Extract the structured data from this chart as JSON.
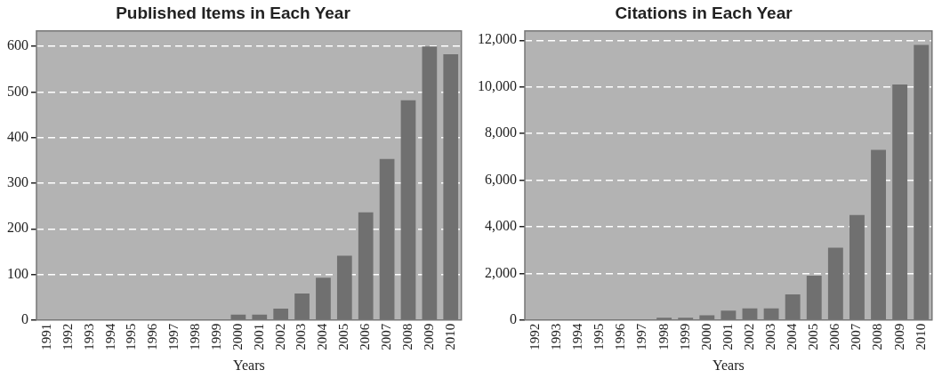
{
  "chart_data": [
    {
      "type": "bar",
      "title": "Published Items in Each Year",
      "xlabel": "Years",
      "categories": [
        "1991",
        "1992",
        "1993",
        "1994",
        "1995",
        "1996",
        "1997",
        "1998",
        "1999",
        "2000",
        "2001",
        "2002",
        "2003",
        "2004",
        "2005",
        "2006",
        "2007",
        "2008",
        "2009",
        "2010"
      ],
      "values": [
        0,
        0,
        0,
        0,
        0,
        0,
        0,
        0,
        0,
        12,
        12,
        25,
        58,
        93,
        141,
        236,
        353,
        482,
        600,
        583
      ],
      "color": "#707070",
      "ylim": [
        0,
        634
      ],
      "yticks": [
        0,
        100,
        200,
        300,
        400,
        500,
        600
      ],
      "grid": "y",
      "legend": false
    },
    {
      "type": "bar",
      "title": "Citations in Each Year",
      "xlabel": "Years",
      "categories": [
        "1992",
        "1993",
        "1994",
        "1995",
        "1996",
        "1997",
        "1998",
        "1999",
        "2000",
        "2001",
        "2002",
        "2003",
        "2004",
        "2005",
        "2006",
        "2007",
        "2008",
        "2009",
        "2010"
      ],
      "values": [
        0,
        0,
        0,
        0,
        0,
        0,
        100,
        100,
        200,
        400,
        500,
        500,
        1100,
        1900,
        3100,
        4500,
        7300,
        10100,
        11800
      ],
      "color": "#707070",
      "ylim": [
        0,
        12400
      ],
      "yticks": [
        0,
        {
          "value": 2000,
          "label": "2,000"
        },
        {
          "value": 4000,
          "label": "4,000"
        },
        {
          "value": 6000,
          "label": "6,000"
        },
        {
          "value": 8000,
          "label": "8,000"
        },
        {
          "value": 10000,
          "label": "10,000"
        },
        {
          "value": 12000,
          "label": "12,000"
        }
      ],
      "grid": "y",
      "legend": false
    }
  ]
}
